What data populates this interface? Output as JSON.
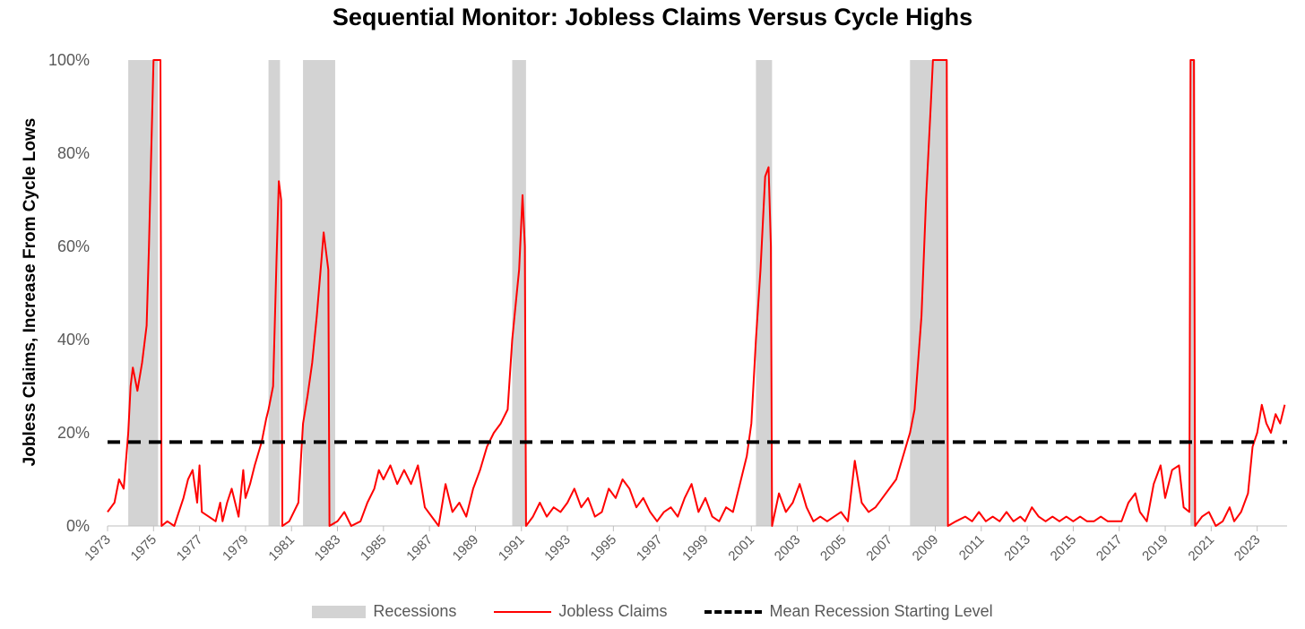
{
  "chart_data": {
    "type": "line",
    "title": "Sequential Monitor: Jobless Claims Versus Cycle Highs",
    "ylabel": "Jobless Claims, Increase From Cycle Lows",
    "xlabel": "",
    "xlim": [
      1973,
      2024.3
    ],
    "ylim": [
      0,
      100
    ],
    "y_ticks": [
      "0%",
      "20%",
      "40%",
      "60%",
      "80%",
      "100%"
    ],
    "y_tick_values": [
      0,
      20,
      40,
      60,
      80,
      100
    ],
    "x_ticks": [
      "1973",
      "1975",
      "1977",
      "1979",
      "1981",
      "1983",
      "1985",
      "1987",
      "1989",
      "1991",
      "1993",
      "1995",
      "1997",
      "1999",
      "2001",
      "2003",
      "2005",
      "2007",
      "2009",
      "2011",
      "2013",
      "2015",
      "2017",
      "2019",
      "2021",
      "2023"
    ],
    "recessions": [
      [
        1973.9,
        1975.2
      ],
      [
        1980.0,
        1980.5
      ],
      [
        1981.5,
        1982.9
      ],
      [
        1990.6,
        1991.2
      ],
      [
        2001.2,
        2001.9
      ],
      [
        2007.9,
        2009.5
      ],
      [
        2020.1,
        2020.3
      ]
    ],
    "series": [
      {
        "name": "Jobless Claims",
        "color": "#ff0000",
        "points": [
          [
            1973.0,
            3
          ],
          [
            1973.3,
            5
          ],
          [
            1973.5,
            10
          ],
          [
            1973.7,
            8
          ],
          [
            1973.9,
            20
          ],
          [
            1974.0,
            30
          ],
          [
            1974.1,
            34
          ],
          [
            1974.3,
            29
          ],
          [
            1974.5,
            35
          ],
          [
            1974.7,
            43
          ],
          [
            1974.8,
            60
          ],
          [
            1974.9,
            80
          ],
          [
            1975.0,
            100
          ],
          [
            1975.3,
            100
          ],
          [
            1975.35,
            0
          ],
          [
            1975.6,
            1
          ],
          [
            1975.9,
            0
          ],
          [
            1976.3,
            6
          ],
          [
            1976.5,
            10
          ],
          [
            1976.7,
            12
          ],
          [
            1976.9,
            5
          ],
          [
            1977.0,
            13
          ],
          [
            1977.1,
            3
          ],
          [
            1977.4,
            2
          ],
          [
            1977.7,
            1
          ],
          [
            1977.9,
            5
          ],
          [
            1978.0,
            1
          ],
          [
            1978.2,
            5
          ],
          [
            1978.4,
            8
          ],
          [
            1978.7,
            2
          ],
          [
            1978.9,
            12
          ],
          [
            1979.0,
            6
          ],
          [
            1979.2,
            9
          ],
          [
            1979.4,
            13
          ],
          [
            1979.7,
            18
          ],
          [
            1979.9,
            23
          ],
          [
            1980.0,
            25
          ],
          [
            1980.2,
            30
          ],
          [
            1980.35,
            57
          ],
          [
            1980.45,
            74
          ],
          [
            1980.55,
            70
          ],
          [
            1980.6,
            0
          ],
          [
            1980.9,
            1
          ],
          [
            1981.1,
            3
          ],
          [
            1981.3,
            5
          ],
          [
            1981.5,
            22
          ],
          [
            1981.7,
            28
          ],
          [
            1981.9,
            35
          ],
          [
            1982.1,
            45
          ],
          [
            1982.3,
            57
          ],
          [
            1982.4,
            63
          ],
          [
            1982.5,
            59
          ],
          [
            1982.6,
            55
          ],
          [
            1982.65,
            0
          ],
          [
            1983.0,
            1
          ],
          [
            1983.3,
            3
          ],
          [
            1983.6,
            0
          ],
          [
            1984.0,
            1
          ],
          [
            1984.3,
            5
          ],
          [
            1984.6,
            8
          ],
          [
            1984.8,
            12
          ],
          [
            1985.0,
            10
          ],
          [
            1985.3,
            13
          ],
          [
            1985.6,
            9
          ],
          [
            1985.9,
            12
          ],
          [
            1986.2,
            9
          ],
          [
            1986.5,
            13
          ],
          [
            1986.8,
            4
          ],
          [
            1987.1,
            2
          ],
          [
            1987.4,
            0
          ],
          [
            1987.7,
            9
          ],
          [
            1988.0,
            3
          ],
          [
            1988.3,
            5
          ],
          [
            1988.6,
            2
          ],
          [
            1988.9,
            8
          ],
          [
            1989.2,
            12
          ],
          [
            1989.5,
            17
          ],
          [
            1989.8,
            20
          ],
          [
            1990.1,
            22
          ],
          [
            1990.4,
            25
          ],
          [
            1990.6,
            40
          ],
          [
            1990.8,
            50
          ],
          [
            1990.9,
            55
          ],
          [
            1991.05,
            71
          ],
          [
            1991.15,
            60
          ],
          [
            1991.2,
            0
          ],
          [
            1991.5,
            2
          ],
          [
            1991.8,
            5
          ],
          [
            1992.1,
            2
          ],
          [
            1992.4,
            4
          ],
          [
            1992.7,
            3
          ],
          [
            1993.0,
            5
          ],
          [
            1993.3,
            8
          ],
          [
            1993.6,
            4
          ],
          [
            1993.9,
            6
          ],
          [
            1994.2,
            2
          ],
          [
            1994.5,
            3
          ],
          [
            1994.8,
            8
          ],
          [
            1995.1,
            6
          ],
          [
            1995.4,
            10
          ],
          [
            1995.7,
            8
          ],
          [
            1996.0,
            4
          ],
          [
            1996.3,
            6
          ],
          [
            1996.6,
            3
          ],
          [
            1996.9,
            1
          ],
          [
            1997.2,
            3
          ],
          [
            1997.5,
            4
          ],
          [
            1997.8,
            2
          ],
          [
            1998.1,
            6
          ],
          [
            1998.4,
            9
          ],
          [
            1998.7,
            3
          ],
          [
            1999.0,
            6
          ],
          [
            1999.3,
            2
          ],
          [
            1999.6,
            1
          ],
          [
            1999.9,
            4
          ],
          [
            2000.2,
            3
          ],
          [
            2000.5,
            9
          ],
          [
            2000.8,
            15
          ],
          [
            2001.0,
            22
          ],
          [
            2001.2,
            40
          ],
          [
            2001.4,
            55
          ],
          [
            2001.6,
            75
          ],
          [
            2001.75,
            77
          ],
          [
            2001.85,
            60
          ],
          [
            2001.9,
            0
          ],
          [
            2002.2,
            7
          ],
          [
            2002.5,
            3
          ],
          [
            2002.8,
            5
          ],
          [
            2003.1,
            9
          ],
          [
            2003.4,
            4
          ],
          [
            2003.7,
            1
          ],
          [
            2004.0,
            2
          ],
          [
            2004.3,
            1
          ],
          [
            2004.6,
            2
          ],
          [
            2004.9,
            3
          ],
          [
            2005.2,
            1
          ],
          [
            2005.5,
            14
          ],
          [
            2005.8,
            5
          ],
          [
            2006.1,
            3
          ],
          [
            2006.4,
            4
          ],
          [
            2006.7,
            6
          ],
          [
            2007.0,
            8
          ],
          [
            2007.3,
            10
          ],
          [
            2007.6,
            15
          ],
          [
            2007.9,
            20
          ],
          [
            2008.1,
            25
          ],
          [
            2008.4,
            45
          ],
          [
            2008.6,
            70
          ],
          [
            2008.8,
            90
          ],
          [
            2008.9,
            100
          ],
          [
            2009.5,
            100
          ],
          [
            2009.55,
            0
          ],
          [
            2009.9,
            1
          ],
          [
            2010.3,
            2
          ],
          [
            2010.6,
            1
          ],
          [
            2010.9,
            3
          ],
          [
            2011.2,
            1
          ],
          [
            2011.5,
            2
          ],
          [
            2011.8,
            1
          ],
          [
            2012.1,
            3
          ],
          [
            2012.4,
            1
          ],
          [
            2012.7,
            2
          ],
          [
            2012.9,
            1
          ],
          [
            2013.2,
            4
          ],
          [
            2013.5,
            2
          ],
          [
            2013.8,
            1
          ],
          [
            2014.1,
            2
          ],
          [
            2014.4,
            1
          ],
          [
            2014.7,
            2
          ],
          [
            2015.0,
            1
          ],
          [
            2015.3,
            2
          ],
          [
            2015.6,
            1
          ],
          [
            2015.9,
            1
          ],
          [
            2016.2,
            2
          ],
          [
            2016.5,
            1
          ],
          [
            2016.8,
            1
          ],
          [
            2017.1,
            1
          ],
          [
            2017.4,
            5
          ],
          [
            2017.7,
            7
          ],
          [
            2017.9,
            3
          ],
          [
            2018.2,
            1
          ],
          [
            2018.5,
            9
          ],
          [
            2018.8,
            13
          ],
          [
            2019.0,
            6
          ],
          [
            2019.3,
            12
          ],
          [
            2019.6,
            13
          ],
          [
            2019.8,
            4
          ],
          [
            2020.05,
            3
          ],
          [
            2020.1,
            100
          ],
          [
            2020.25,
            100
          ],
          [
            2020.3,
            0
          ],
          [
            2020.6,
            2
          ],
          [
            2020.9,
            3
          ],
          [
            2021.2,
            0
          ],
          [
            2021.5,
            1
          ],
          [
            2021.8,
            4
          ],
          [
            2022.0,
            1
          ],
          [
            2022.3,
            3
          ],
          [
            2022.6,
            7
          ],
          [
            2022.8,
            17
          ],
          [
            2023.0,
            20
          ],
          [
            2023.2,
            26
          ],
          [
            2023.4,
            22
          ],
          [
            2023.6,
            20
          ],
          [
            2023.8,
            24
          ],
          [
            2024.0,
            22
          ],
          [
            2024.2,
            26
          ]
        ]
      },
      {
        "name": "Mean Recession Starting Level",
        "color": "#000000",
        "value": 18
      }
    ],
    "legend": {
      "position": "bottom",
      "recessions_label": "Recessions",
      "claims_label": "Jobless Claims",
      "mean_label": "Mean Recession Starting Level"
    },
    "recession_color": "#d3d3d3"
  }
}
